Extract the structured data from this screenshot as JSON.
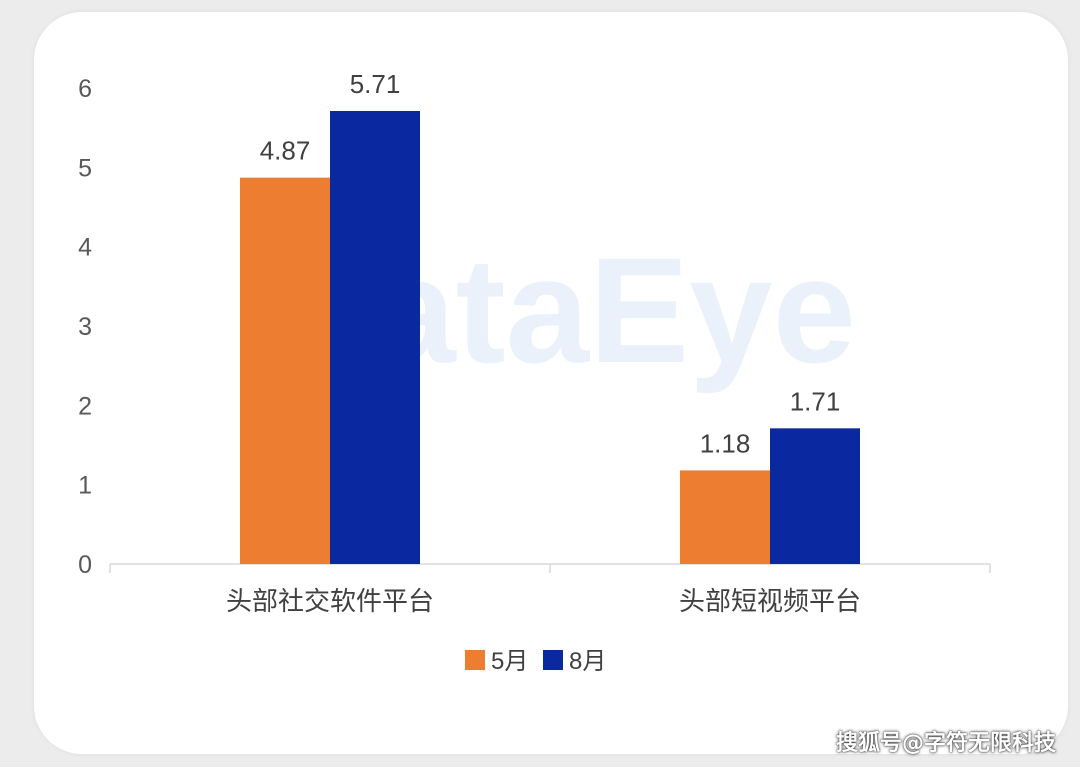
{
  "chart_data": {
    "type": "bar",
    "categories": [
      "头部社交软件平台",
      "头部短视频平台"
    ],
    "series": [
      {
        "name": "5月",
        "values": [
          4.87,
          1.18
        ],
        "color": "#ED7D31"
      },
      {
        "name": "8月",
        "values": [
          5.71,
          1.71
        ],
        "color": "#0A28A0"
      }
    ],
    "y_ticks": [
      "0",
      "1",
      "2",
      "3",
      "4",
      "5",
      "6"
    ],
    "ylim": [
      0,
      6
    ],
    "grid": false,
    "legend": "bottom"
  },
  "watermark": "DataEye",
  "attribution": "搜狐号@字符无限科技"
}
